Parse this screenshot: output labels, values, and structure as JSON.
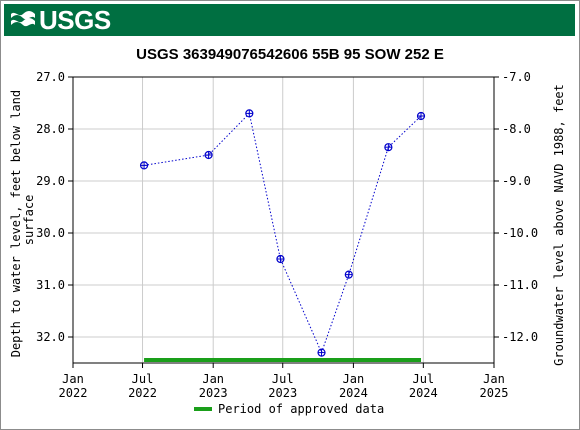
{
  "header": {
    "logo_text": "USGS",
    "banner_color": "#006f41"
  },
  "chart_data": {
    "type": "line",
    "title": "USGS 363949076542606 55B 95 SOW 252 E",
    "ylabel_left": "Depth to water level, feet below land surface",
    "ylabel_left_lines": [
      "Depth to water level, feet below land",
      "surface"
    ],
    "ylabel_right": "Groundwater level above NAVD 1988, feet",
    "x_ticks": [
      {
        "date": "2022-01-01",
        "line1": "Jan",
        "line2": "2022"
      },
      {
        "date": "2022-07-01",
        "line1": "Jul",
        "line2": "2022"
      },
      {
        "date": "2023-01-01",
        "line1": "Jan",
        "line2": "2023"
      },
      {
        "date": "2023-07-01",
        "line1": "Jul",
        "line2": "2023"
      },
      {
        "date": "2024-01-01",
        "line1": "Jan",
        "line2": "2024"
      },
      {
        "date": "2024-07-01",
        "line1": "Jul",
        "line2": "2024"
      },
      {
        "date": "2025-01-01",
        "line1": "Jan",
        "line2": "2025"
      }
    ],
    "xlim": [
      "2022-01-01",
      "2025-01-01"
    ],
    "ylim_left": [
      27.0,
      32.5
    ],
    "y_ticks_left": [
      "27.0",
      "28.0",
      "29.0",
      "30.0",
      "31.0",
      "32.0"
    ],
    "ylim_right": [
      -7.0,
      -12.5
    ],
    "y_ticks_right": [
      "-7.0",
      "-8.0",
      "-9.0",
      "-10.0",
      "-11.0",
      "-12.0"
    ],
    "y_inverted": true,
    "grid": true,
    "series": [
      {
        "points": [
          {
            "x": "2022-07-05",
            "y": 28.7
          },
          {
            "x": "2022-12-20",
            "y": 28.5
          },
          {
            "x": "2023-04-05",
            "y": 27.7
          },
          {
            "x": "2023-06-25",
            "y": 30.5
          },
          {
            "x": "2023-10-10",
            "y": 32.3
          },
          {
            "x": "2023-12-20",
            "y": 30.8
          },
          {
            "x": "2024-04-01",
            "y": 28.35
          },
          {
            "x": "2024-06-25",
            "y": 27.75
          }
        ],
        "color": "#0000cc",
        "marker": "circle-plus",
        "line_style": "dotted"
      }
    ],
    "approved_period": {
      "start": "2022-07-05",
      "end": "2024-06-25",
      "color": "#1a9f1a"
    },
    "legend": [
      {
        "label": "Period of approved data",
        "color": "#1a9f1a"
      }
    ],
    "legend_position": "bottom-center"
  }
}
